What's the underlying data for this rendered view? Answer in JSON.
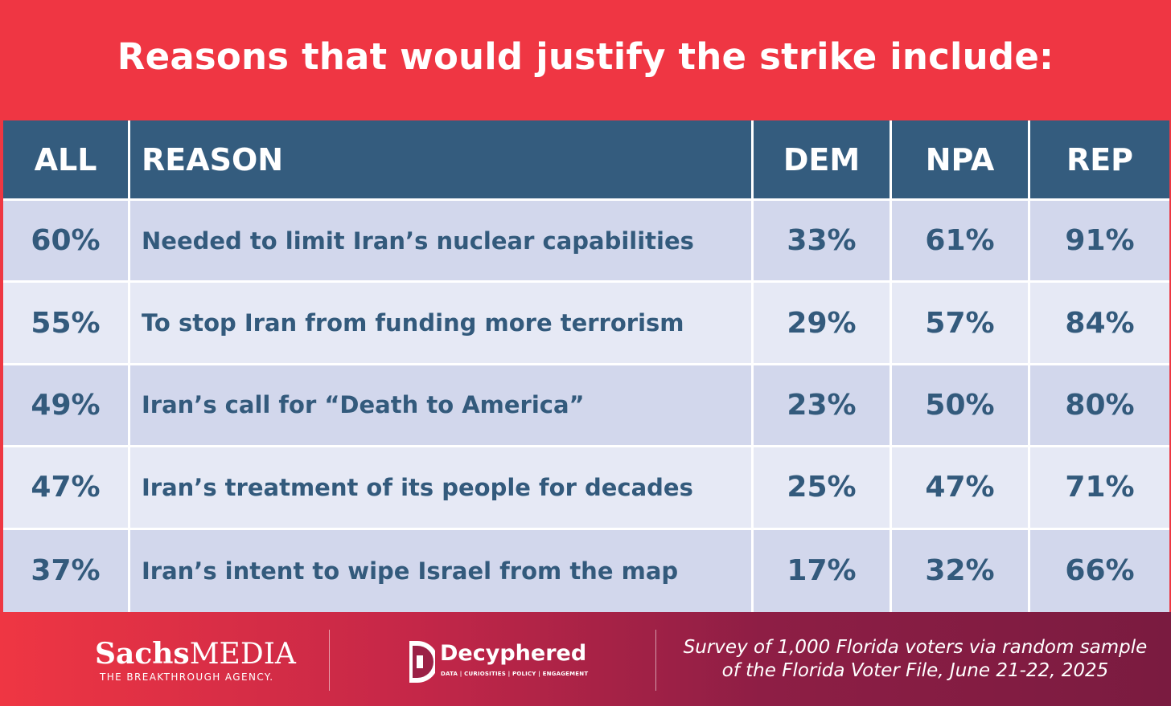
{
  "title": "Reasons that would justify the strike include:",
  "chart_data": {
    "type": "table",
    "title": "Reasons that would justify the strike include:",
    "columns": [
      "ALL",
      "REASON",
      "DEM",
      "NPA",
      "REP"
    ],
    "rows": [
      {
        "all": "60%",
        "reason": "Needed to limit Iran’s nuclear capabilities",
        "dem": "33%",
        "npa": "61%",
        "rep": "91%"
      },
      {
        "all": "55%",
        "reason": "To stop Iran from funding more terrorism",
        "dem": "29%",
        "npa": "57%",
        "rep": "84%"
      },
      {
        "all": "49%",
        "reason": "Iran’s call for “Death to America”",
        "dem": "23%",
        "npa": "50%",
        "rep": "80%"
      },
      {
        "all": "47%",
        "reason": "Iran’s treatment of its people for decades",
        "dem": "25%",
        "npa": "47%",
        "rep": "71%"
      },
      {
        "all": "37%",
        "reason": "Iran’s intent to wipe Israel from the map",
        "dem": "17%",
        "npa": "32%",
        "rep": "66%"
      }
    ]
  },
  "footer": {
    "sachs_logo": {
      "part1": "Sachs",
      "part2": "MEDIA",
      "tagline": "THE BREAKTHROUGH AGENCY."
    },
    "decyphered_logo": {
      "name": "Decyphered",
      "tagline": "DATA | CURIOSITIES | POLICY | ENGAGEMENT",
      "icon": "decyphered-d-icon"
    },
    "survey_line1": "Survey of 1,000 Florida voters via random sample",
    "survey_line2": "of the Florida Voter File, June 21-22, 2025"
  },
  "colors": {
    "banner": "#ef3643",
    "header": "#345c7e",
    "row_dark": "#d2d7ec",
    "row_light": "#e6e9f5",
    "text": "#335a7c"
  }
}
